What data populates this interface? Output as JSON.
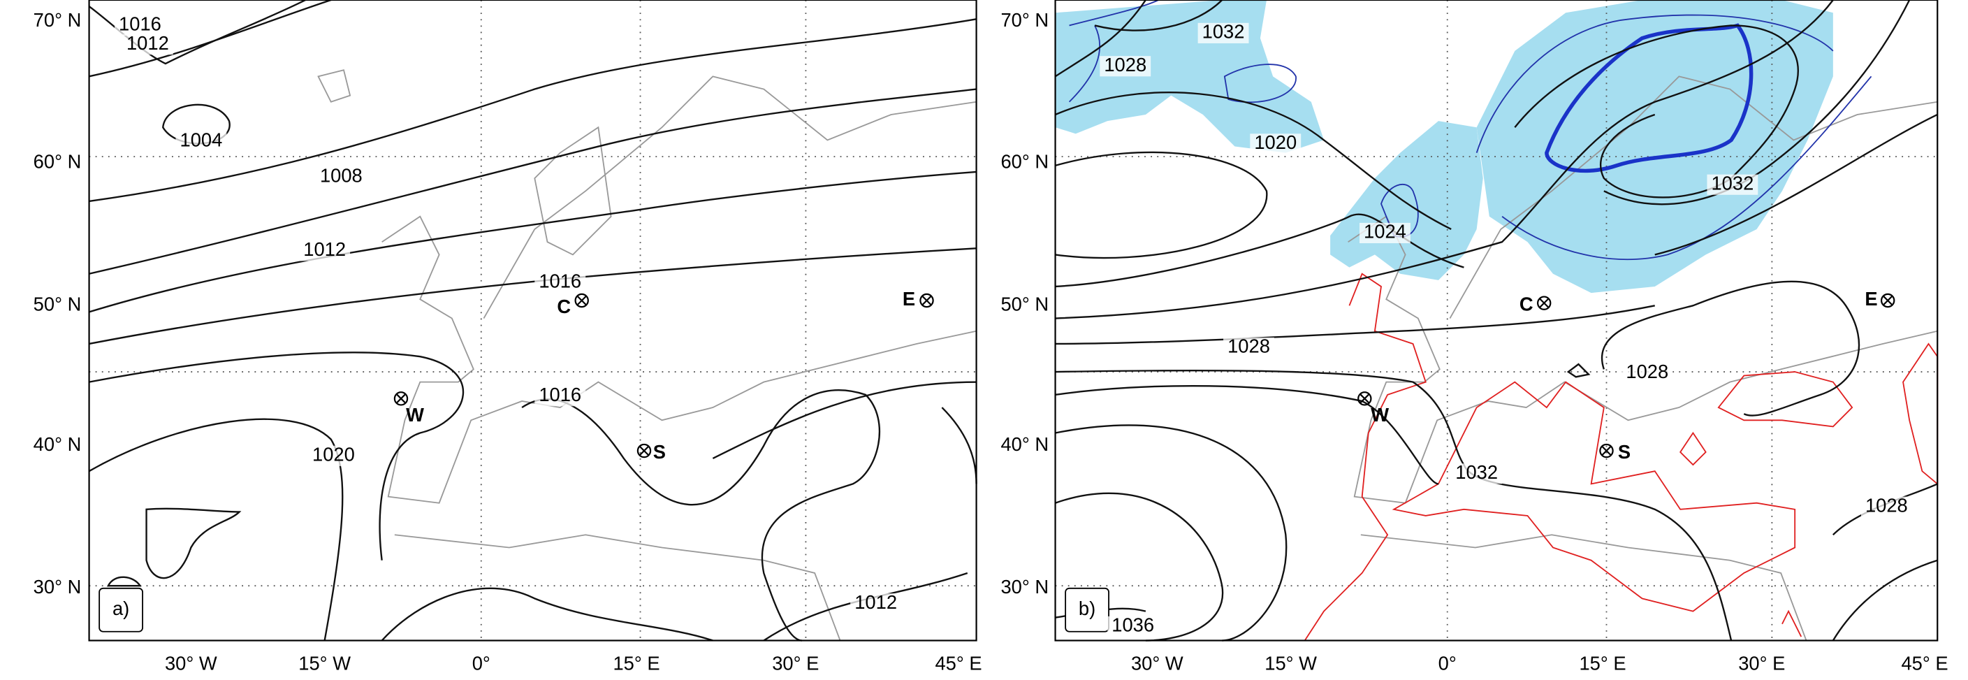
{
  "panels": [
    {
      "label": "a)",
      "lat_labels": [
        "70° N",
        "60° N",
        "50° N",
        "40° N",
        "30° N"
      ],
      "lon_labels": [
        "30° W",
        "15° W",
        "0°",
        "15° E",
        "30° E",
        "45° E"
      ],
      "contour_labels": [
        "1016",
        "1012",
        "1004",
        "1008",
        "1012",
        "1016",
        "1016",
        "1020",
        "1012"
      ],
      "points": [
        "W",
        "C",
        "S",
        "E"
      ]
    },
    {
      "label": "b)",
      "lat_labels": [
        "70° N",
        "60° N",
        "50° N",
        "40° N",
        "30° N"
      ],
      "lon_labels": [
        "30° W",
        "15° W",
        "0°",
        "15° E",
        "30° E",
        "45° E"
      ],
      "contour_labels": [
        "1032",
        "1028",
        "1020",
        "1024",
        "1032",
        "1028",
        "1028",
        "1032",
        "1028",
        "1036"
      ],
      "points": [
        "W",
        "C",
        "S",
        "E"
      ]
    }
  ]
}
